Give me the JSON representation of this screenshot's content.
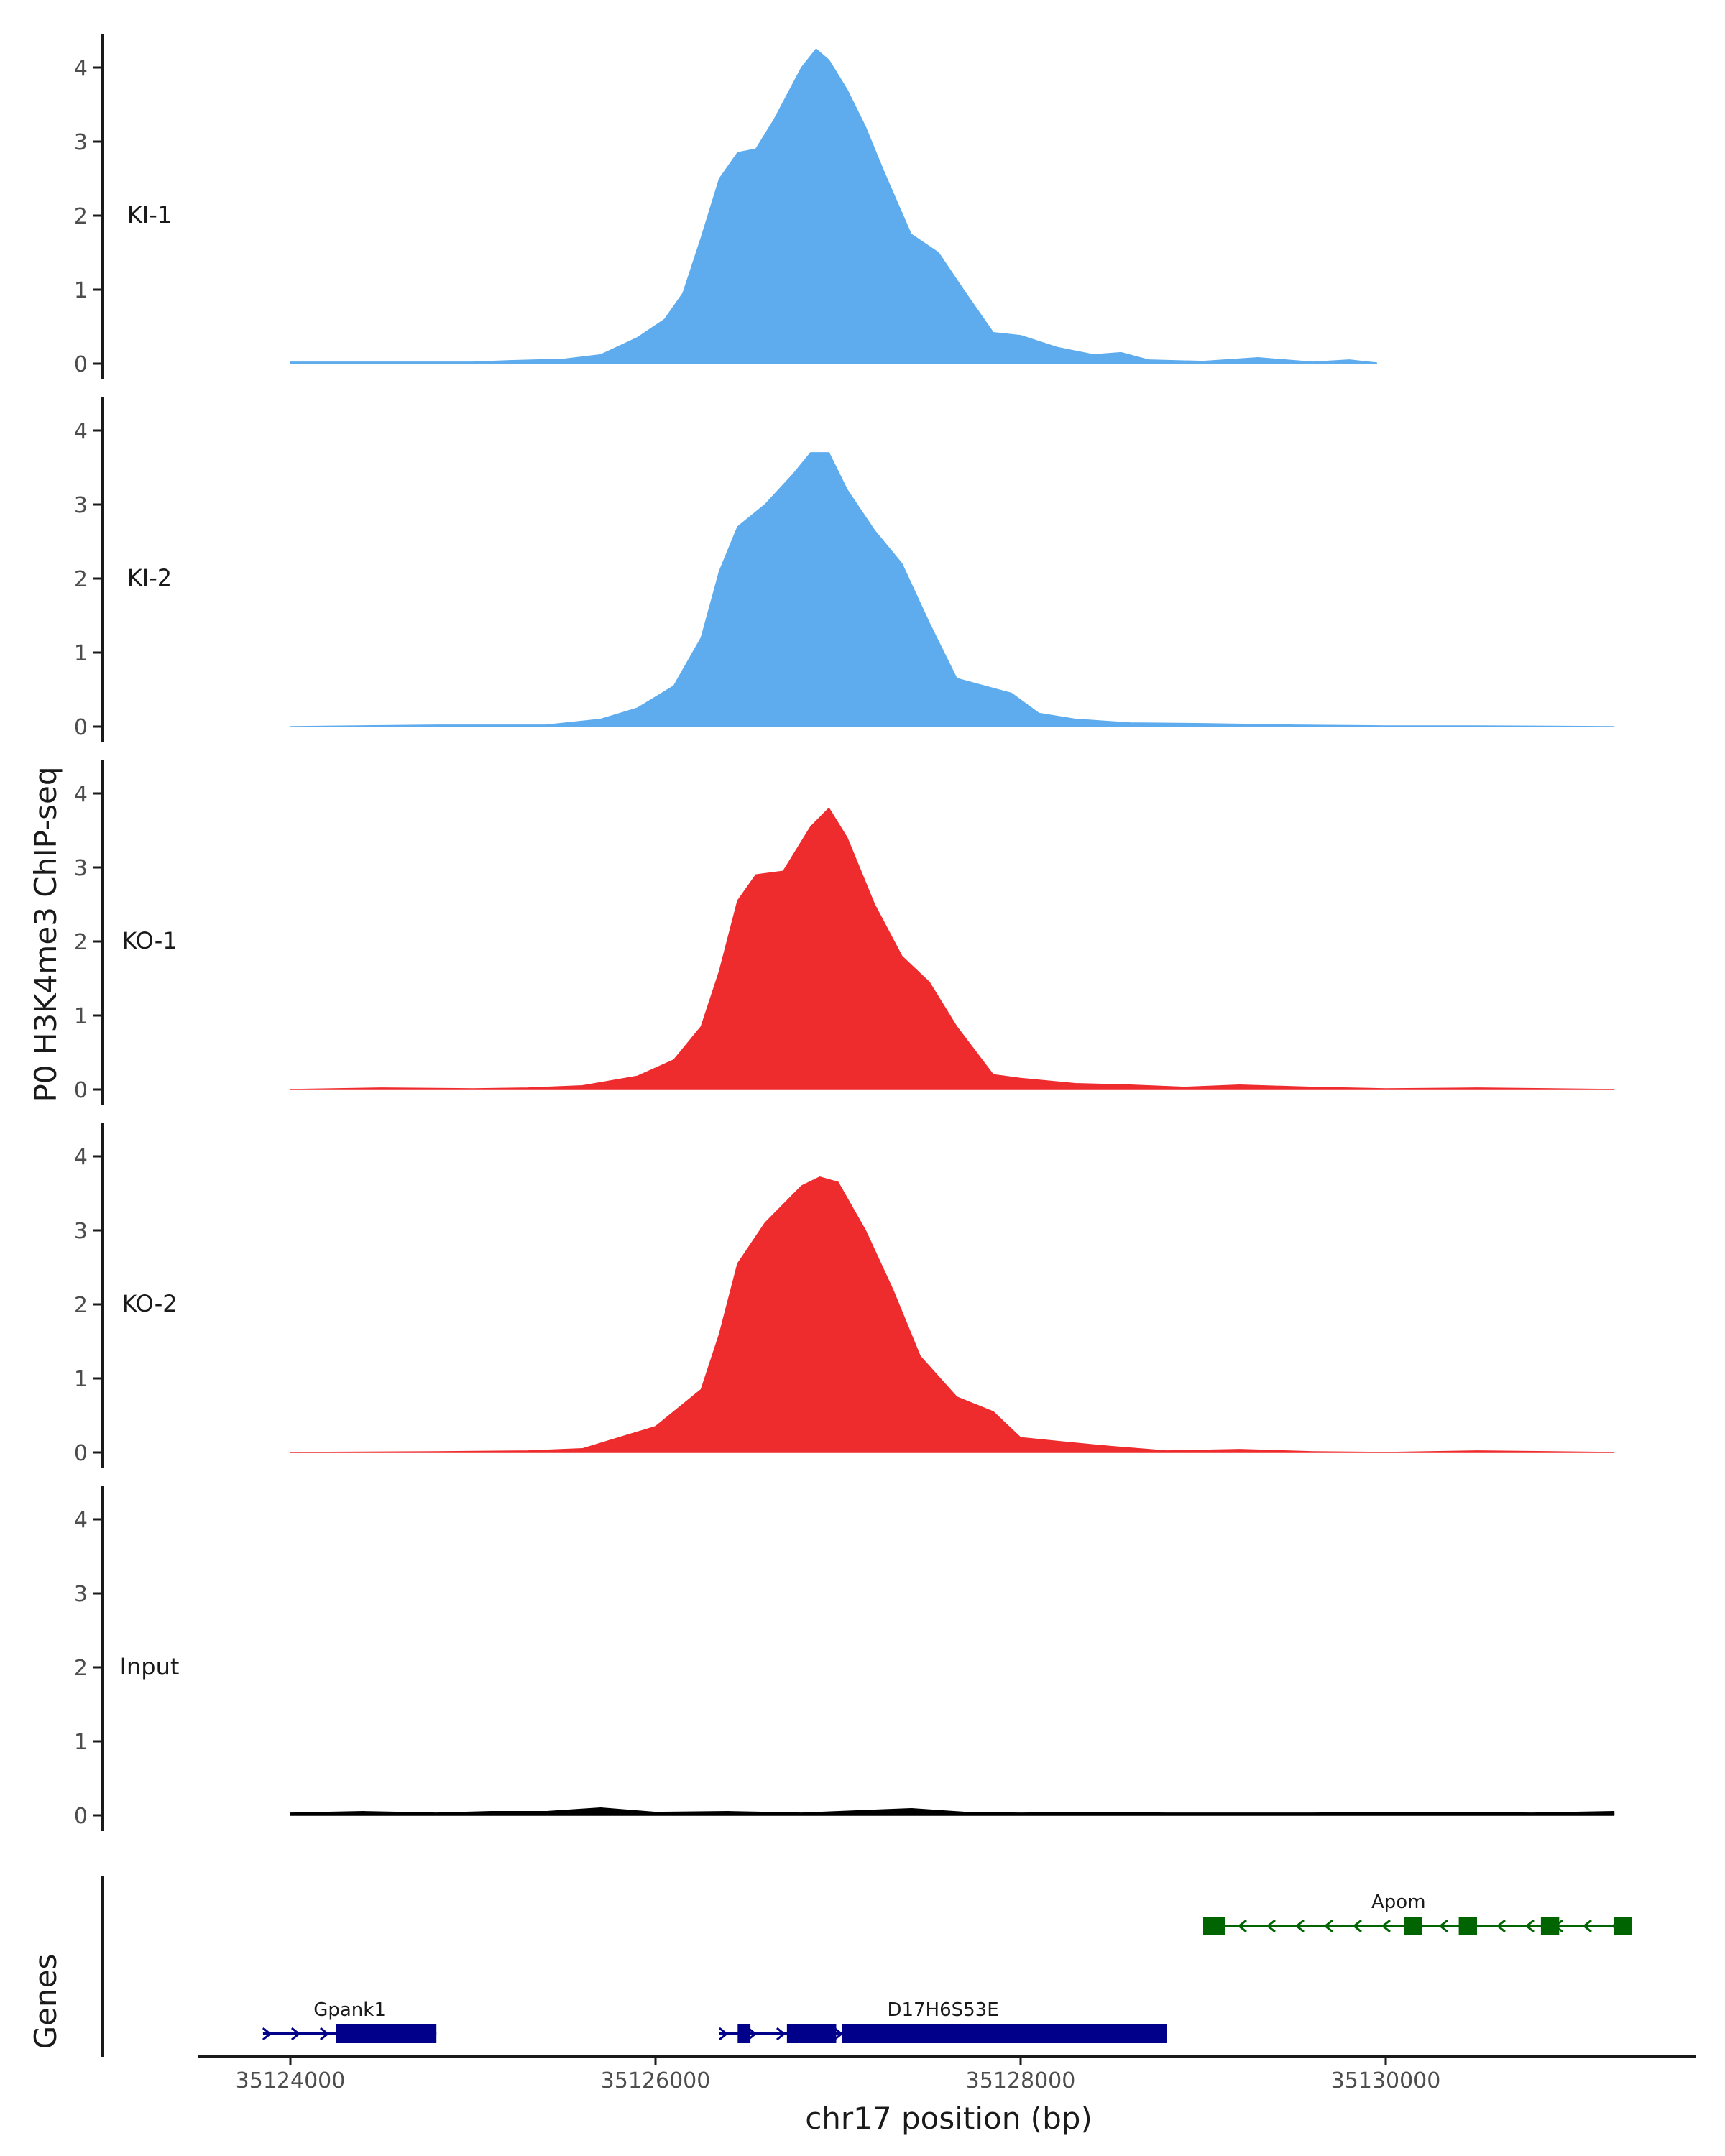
{
  "chart_data": {
    "type": "area",
    "ylabel": "P0 H3K4me3 ChIP-seq",
    "xlabel": "chr17 position (bp)",
    "genes_label": "Genes",
    "ylim": [
      0,
      4.5
    ],
    "xlim": [
      35123000,
      35131800
    ],
    "y_ticks": [
      0,
      1,
      2,
      3,
      4
    ],
    "x_ticks": [
      35124000,
      35126000,
      35128000,
      35130000
    ],
    "tracks": [
      {
        "name": "KI-1",
        "color": "#5eacee",
        "range": [
          35124000,
          35129950
        ],
        "points": [
          [
            35124000,
            0.02
          ],
          [
            35124500,
            0.02
          ],
          [
            35125000,
            0.02
          ],
          [
            35125200,
            0.04
          ],
          [
            35125500,
            0.06
          ],
          [
            35125700,
            0.12
          ],
          [
            35125900,
            0.35
          ],
          [
            35126050,
            0.6
          ],
          [
            35126150,
            0.95
          ],
          [
            35126250,
            1.7
          ],
          [
            35126350,
            2.5
          ],
          [
            35126450,
            2.85
          ],
          [
            35126550,
            2.9
          ],
          [
            35126650,
            3.3
          ],
          [
            35126800,
            4.0
          ],
          [
            35126880,
            4.25
          ],
          [
            35126950,
            4.1
          ],
          [
            35127050,
            3.7
          ],
          [
            35127150,
            3.2
          ],
          [
            35127250,
            2.6
          ],
          [
            35127400,
            1.75
          ],
          [
            35127550,
            1.5
          ],
          [
            35127700,
            0.95
          ],
          [
            35127850,
            0.42
          ],
          [
            35128000,
            0.38
          ],
          [
            35128200,
            0.22
          ],
          [
            35128400,
            0.12
          ],
          [
            35128550,
            0.15
          ],
          [
            35128700,
            0.05
          ],
          [
            35129000,
            0.03
          ],
          [
            35129300,
            0.08
          ],
          [
            35129600,
            0.02
          ],
          [
            35129800,
            0.05
          ],
          [
            35129950,
            0.01
          ]
        ]
      },
      {
        "name": "KI-2",
        "color": "#5eacee",
        "range": [
          35124000,
          35131250
        ],
        "points": [
          [
            35124000,
            0.0
          ],
          [
            35124800,
            0.02
          ],
          [
            35125200,
            0.02
          ],
          [
            35125400,
            0.02
          ],
          [
            35125700,
            0.1
          ],
          [
            35125900,
            0.25
          ],
          [
            35126100,
            0.55
          ],
          [
            35126250,
            1.2
          ],
          [
            35126350,
            2.1
          ],
          [
            35126450,
            2.7
          ],
          [
            35126600,
            3.0
          ],
          [
            35126750,
            3.4
          ],
          [
            35126850,
            3.7
          ],
          [
            35126950,
            3.7
          ],
          [
            35127050,
            3.2
          ],
          [
            35127200,
            2.65
          ],
          [
            35127350,
            2.2
          ],
          [
            35127500,
            1.4
          ],
          [
            35127650,
            0.65
          ],
          [
            35127800,
            0.55
          ],
          [
            35127950,
            0.45
          ],
          [
            35128100,
            0.18
          ],
          [
            35128300,
            0.1
          ],
          [
            35128600,
            0.05
          ],
          [
            35129000,
            0.04
          ],
          [
            35129500,
            0.02
          ],
          [
            35130000,
            0.01
          ],
          [
            35130500,
            0.01
          ],
          [
            35131250,
            0.0
          ]
        ]
      },
      {
        "name": "KO-1",
        "color": "#ee2b2d",
        "range": [
          35124000,
          35131250
        ],
        "points": [
          [
            35124000,
            0.0
          ],
          [
            35124500,
            0.02
          ],
          [
            35125000,
            0.01
          ],
          [
            35125300,
            0.02
          ],
          [
            35125600,
            0.05
          ],
          [
            35125900,
            0.18
          ],
          [
            35126100,
            0.4
          ],
          [
            35126250,
            0.85
          ],
          [
            35126350,
            1.6
          ],
          [
            35126450,
            2.55
          ],
          [
            35126550,
            2.9
          ],
          [
            35126700,
            2.95
          ],
          [
            35126850,
            3.55
          ],
          [
            35126950,
            3.8
          ],
          [
            35127050,
            3.4
          ],
          [
            35127200,
            2.5
          ],
          [
            35127350,
            1.8
          ],
          [
            35127500,
            1.45
          ],
          [
            35127650,
            0.85
          ],
          [
            35127850,
            0.2
          ],
          [
            35128000,
            0.15
          ],
          [
            35128300,
            0.08
          ],
          [
            35128600,
            0.06
          ],
          [
            35128900,
            0.03
          ],
          [
            35129200,
            0.06
          ],
          [
            35129600,
            0.03
          ],
          [
            35130000,
            0.01
          ],
          [
            35130500,
            0.02
          ],
          [
            35131250,
            0.0
          ]
        ]
      },
      {
        "name": "KO-2",
        "color": "#ee2b2d",
        "range": [
          35124000,
          35131250
        ],
        "points": [
          [
            35124000,
            0.0
          ],
          [
            35124800,
            0.01
          ],
          [
            35125300,
            0.02
          ],
          [
            35125600,
            0.05
          ],
          [
            35125800,
            0.2
          ],
          [
            35126000,
            0.35
          ],
          [
            35126250,
            0.85
          ],
          [
            35126350,
            1.6
          ],
          [
            35126450,
            2.55
          ],
          [
            35126600,
            3.1
          ],
          [
            35126800,
            3.6
          ],
          [
            35126900,
            3.72
          ],
          [
            35127000,
            3.65
          ],
          [
            35127150,
            3.0
          ],
          [
            35127300,
            2.2
          ],
          [
            35127450,
            1.3
          ],
          [
            35127650,
            0.75
          ],
          [
            35127850,
            0.55
          ],
          [
            35128000,
            0.2
          ],
          [
            35128200,
            0.15
          ],
          [
            35128500,
            0.08
          ],
          [
            35128800,
            0.02
          ],
          [
            35129200,
            0.04
          ],
          [
            35129600,
            0.01
          ],
          [
            35130000,
            0.0
          ],
          [
            35130500,
            0.02
          ],
          [
            35131250,
            0.0
          ]
        ]
      },
      {
        "name": "Input",
        "color": "#000000",
        "range": [
          35124000,
          35131250
        ],
        "points": [
          [
            35124000,
            0.03
          ],
          [
            35124400,
            0.05
          ],
          [
            35124800,
            0.03
          ],
          [
            35125100,
            0.05
          ],
          [
            35125400,
            0.05
          ],
          [
            35125700,
            0.1
          ],
          [
            35126000,
            0.04
          ],
          [
            35126400,
            0.05
          ],
          [
            35126800,
            0.03
          ],
          [
            35127100,
            0.06
          ],
          [
            35127400,
            0.09
          ],
          [
            35127700,
            0.04
          ],
          [
            35128000,
            0.03
          ],
          [
            35128400,
            0.04
          ],
          [
            35128800,
            0.03
          ],
          [
            35129200,
            0.03
          ],
          [
            35129600,
            0.03
          ],
          [
            35130000,
            0.04
          ],
          [
            35130400,
            0.04
          ],
          [
            35130800,
            0.03
          ],
          [
            35131250,
            0.05
          ]
        ]
      }
    ],
    "genes": [
      {
        "name": "Gpank1",
        "strand": "+",
        "color": "#00008b",
        "row": 2,
        "start": 35123850,
        "end": 35124800,
        "exons": [
          [
            35124250,
            35124800
          ]
        ]
      },
      {
        "name": "D17H6S53E",
        "strand": "+",
        "color": "#00008b",
        "row": 2,
        "start": 35126350,
        "end": 35128800,
        "exons": [
          [
            35126450,
            35126520
          ],
          [
            35126720,
            35126990
          ],
          [
            35127020,
            35128800
          ]
        ]
      },
      {
        "name": "Apom",
        "strand": "-",
        "color": "#006400",
        "row": 1,
        "start": 35129000,
        "end": 35131350,
        "exons": [
          [
            35129000,
            35129120
          ],
          [
            35130100,
            35130200
          ],
          [
            35130400,
            35130500
          ],
          [
            35130850,
            35130950
          ],
          [
            35131250,
            35131350
          ]
        ]
      }
    ]
  }
}
